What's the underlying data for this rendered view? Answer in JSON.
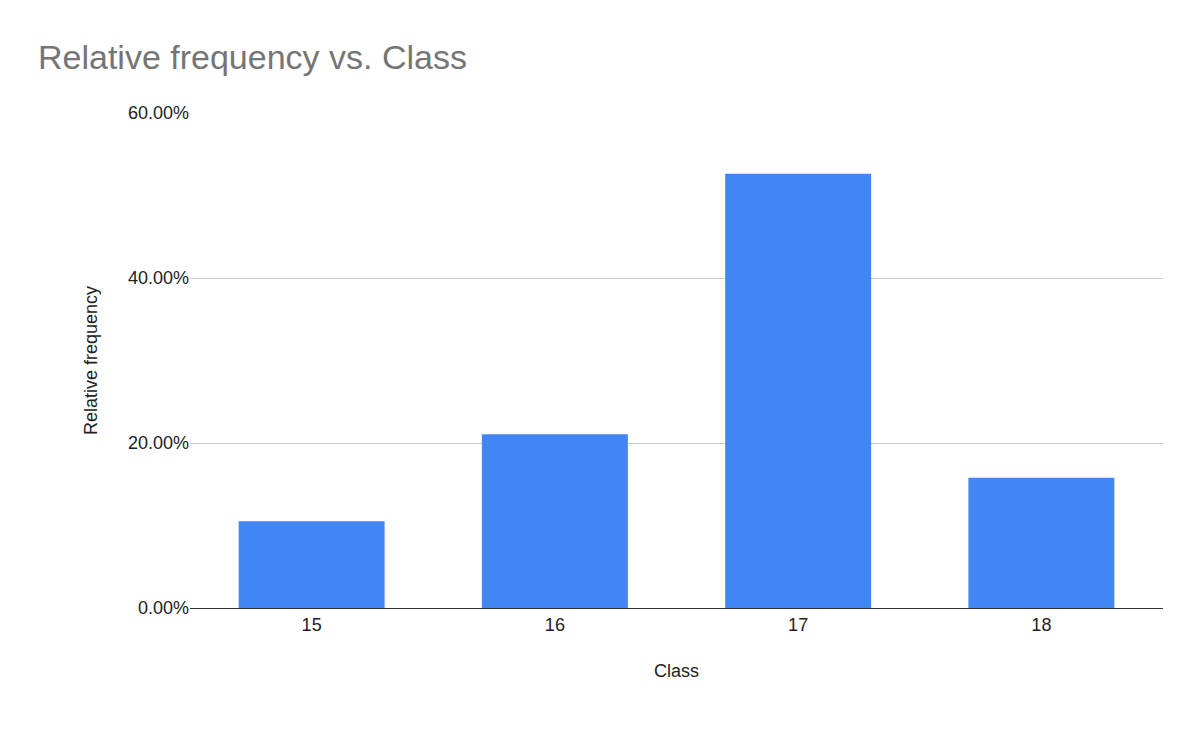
{
  "chart_data": {
    "type": "bar",
    "title": "Relative frequency vs. Class",
    "x_label": "Class",
    "y_label": "Relative frequency",
    "categories": [
      "15",
      "16",
      "17",
      "18"
    ],
    "values": [
      10.53,
      21.05,
      52.63,
      15.79
    ],
    "color": "#4285f4",
    "ylim": [
      0,
      60
    ],
    "yticks": [
      {
        "value": 0,
        "label": "0.00%"
      },
      {
        "value": 20,
        "label": "20.00%"
      },
      {
        "value": 40,
        "label": "40.00%"
      },
      {
        "value": 60,
        "label": "60.00%"
      }
    ],
    "grid": true
  }
}
